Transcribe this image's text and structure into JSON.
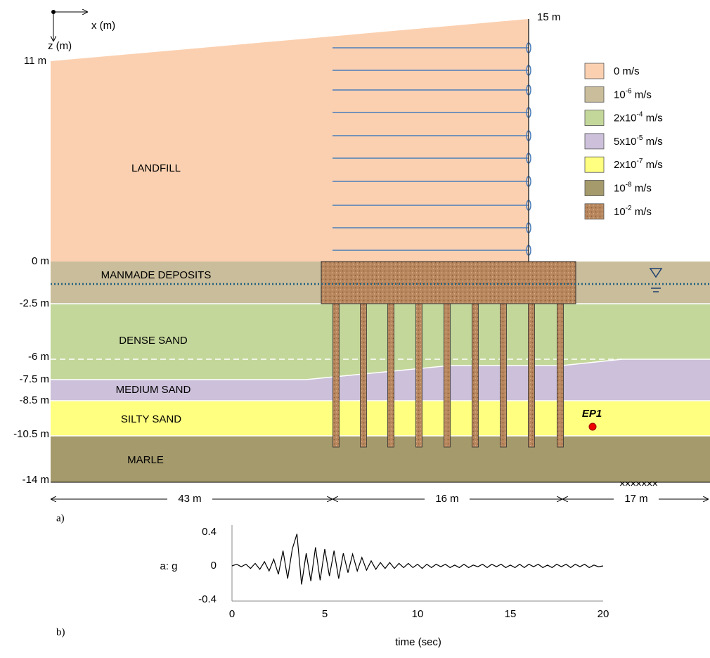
{
  "axes_labels": {
    "x": "x (m)",
    "z": "z (m)"
  },
  "elevations": {
    "left_top": "11 m",
    "right_top": "15 m"
  },
  "depths": [
    "0 m",
    "-2.5 m",
    "-6 m",
    "-7.5 m",
    "-8.5 m",
    "-10.5 m",
    "-14 m"
  ],
  "layers": [
    "LANDFILL",
    "MANMADE  DEPOSITS",
    "DENSE  SAND",
    "MEDIUM  SAND",
    "SILTY  SAND",
    "MARLE"
  ],
  "legend": [
    {
      "prefix": "0 m/s",
      "color": "#fbd0b0"
    },
    {
      "prefix": "10",
      "exp": "-6",
      "unit": " m/s",
      "color": "#c9bd9b"
    },
    {
      "prefix": "2x10",
      "exp": "-4",
      "unit": " m/s",
      "color": "#c4d79b"
    },
    {
      "prefix": "5x10",
      "exp": "-5",
      "unit": " m/s",
      "color": "#ccc0da"
    },
    {
      "prefix": "2x10",
      "exp": "-7",
      "unit": " m/s",
      "color": "#ffff80"
    },
    {
      "prefix": "10",
      "exp": "-8",
      "unit": " m/s",
      "color": "#a59a6c"
    },
    {
      "prefix": "10",
      "exp": "-2",
      "unit": " m/s",
      "color": "#b8875e"
    }
  ],
  "point_label": "EP1",
  "dimensions": [
    "43 m",
    "16 m",
    "17 m"
  ],
  "panel_labels": [
    "a)",
    "b)"
  ],
  "chart_data": {
    "type": "line",
    "y_label": "a: g",
    "x_label": "time  (sec)",
    "color": "#000000",
    "xlim": [
      0,
      20
    ],
    "xticks": [
      0,
      5,
      10,
      15,
      20
    ],
    "ylim": [
      -0.4,
      0.4
    ],
    "yticks": [
      0.4,
      0,
      -0.4
    ],
    "x": [
      0,
      0.25,
      0.5,
      0.75,
      1,
      1.25,
      1.5,
      1.75,
      2,
      2.25,
      2.5,
      2.75,
      3,
      3.25,
      3.5,
      3.75,
      4,
      4.25,
      4.5,
      4.75,
      5,
      5.25,
      5.5,
      5.75,
      6,
      6.25,
      6.5,
      6.75,
      7,
      7.25,
      7.5,
      7.75,
      8,
      8.25,
      8.5,
      8.75,
      9,
      9.25,
      9.5,
      9.75,
      10,
      10.25,
      10.5,
      10.75,
      11,
      11.25,
      11.5,
      11.75,
      12,
      12.25,
      12.5,
      12.75,
      13,
      13.25,
      13.5,
      13.75,
      14,
      14.25,
      14.5,
      14.75,
      15,
      15.25,
      15.5,
      15.75,
      16,
      16.25,
      16.5,
      16.75,
      17,
      17.25,
      17.5,
      17.75,
      18,
      18.25,
      18.5,
      18.75,
      19,
      19.25,
      19.5,
      19.75,
      20
    ],
    "values": [
      0,
      0.02,
      -0.01,
      0.02,
      -0.03,
      0.03,
      -0.04,
      0.05,
      -0.06,
      0.08,
      -0.1,
      0.18,
      -0.15,
      0.2,
      0.38,
      -0.22,
      0.15,
      -0.18,
      0.22,
      -0.17,
      0.2,
      -0.12,
      0.18,
      -0.15,
      0.15,
      -0.08,
      0.14,
      -0.06,
      0.1,
      -0.05,
      0.06,
      -0.04,
      0.04,
      -0.03,
      0.04,
      -0.03,
      0.03,
      -0.02,
      0.03,
      -0.02,
      0.02,
      -0.03,
      0.02,
      -0.02,
      0.02,
      -0.01,
      0.02,
      -0.02,
      0.01,
      -0.02,
      0.02,
      -0.02,
      0.01,
      -0.01,
      0.02,
      -0.02,
      0.02,
      -0.01,
      0.02,
      -0.02,
      0.01,
      -0.02,
      0.02,
      -0.02,
      0.02,
      -0.01,
      0.02,
      -0.02,
      0.01,
      -0.02,
      0.02,
      -0.01,
      0.02,
      -0.02,
      0.02,
      -0.01,
      0.02,
      -0.02,
      0.01,
      -0.01,
      0
    ]
  }
}
